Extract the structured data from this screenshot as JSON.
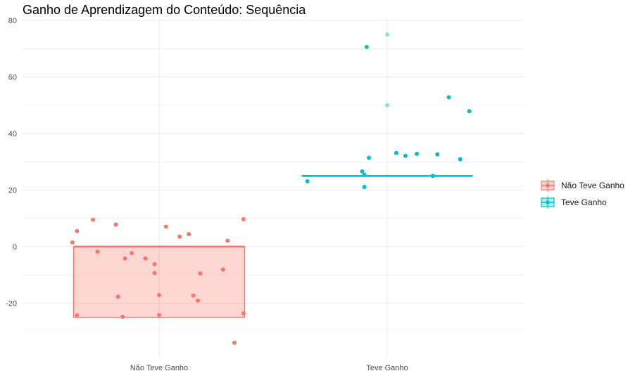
{
  "chart_data": {
    "type": "boxplot_with_jitter",
    "title": "Ganho de Aprendizagem do Conteúdo: Sequência",
    "xlabel": "",
    "ylabel": "",
    "categories": [
      "Não Teve Ganho",
      "Teve Ganho"
    ],
    "ylim": [
      -39,
      80.5
    ],
    "y_ticks": [
      -20,
      0,
      20,
      40,
      60,
      80
    ],
    "grid": true,
    "legend": {
      "position": "right",
      "entries": [
        "Não Teve Ganho",
        "Teve Ganho"
      ]
    },
    "colors": {
      "Não Teve Ganho": "#F8766D",
      "Teve Ganho": "#00BFC4",
      "box_fill_nao": "#F8766D",
      "grid": "#ebebeb"
    },
    "series": [
      {
        "name": "Não Teve Ganho",
        "box": {
          "q1": -25,
          "median": 0,
          "q3": 0,
          "whisker_low": -25,
          "whisker_high": 0
        },
        "outliers": [],
        "points": [
          {
            "x": -0.38,
            "y": 1.5
          },
          {
            "x": -0.36,
            "y": -24.3
          },
          {
            "x": -0.36,
            "y": 5.5
          },
          {
            "x": -0.29,
            "y": 9.5
          },
          {
            "x": -0.27,
            "y": -1.8
          },
          {
            "x": -0.19,
            "y": 7.8
          },
          {
            "x": -0.18,
            "y": -17.7
          },
          {
            "x": -0.16,
            "y": -24.8
          },
          {
            "x": -0.15,
            "y": -4.2
          },
          {
            "x": -0.12,
            "y": -2.3
          },
          {
            "x": -0.06,
            "y": -4.2
          },
          {
            "x": -0.02,
            "y": -6.2
          },
          {
            "x": -0.02,
            "y": -9.3
          },
          {
            "x": 0.0,
            "y": -24.2
          },
          {
            "x": 0.0,
            "y": -17.1
          },
          {
            "x": 0.03,
            "y": 7.1
          },
          {
            "x": 0.09,
            "y": 3.5
          },
          {
            "x": 0.13,
            "y": 4.4
          },
          {
            "x": 0.15,
            "y": -17.3
          },
          {
            "x": 0.17,
            "y": -19.1
          },
          {
            "x": 0.18,
            "y": -9.5
          },
          {
            "x": 0.28,
            "y": -8.1
          },
          {
            "x": 0.3,
            "y": 2.1
          },
          {
            "x": 0.33,
            "y": -34.0
          },
          {
            "x": 0.37,
            "y": -23.6
          },
          {
            "x": 0.37,
            "y": 9.7
          }
        ]
      },
      {
        "name": "Teve Ganho",
        "box": {
          "q1": 25,
          "median": 25,
          "q3": 25,
          "whisker_low": 25,
          "whisker_high": 25
        },
        "outliers": [
          75,
          50
        ],
        "points": [
          {
            "x": -0.35,
            "y": 23.1
          },
          {
            "x": -0.11,
            "y": 26.6
          },
          {
            "x": -0.1,
            "y": 25.4
          },
          {
            "x": -0.1,
            "y": 21.1
          },
          {
            "x": -0.09,
            "y": 70.6
          },
          {
            "x": -0.08,
            "y": 31.4
          },
          {
            "x": 0.04,
            "y": 33.1
          },
          {
            "x": 0.08,
            "y": 32.1
          },
          {
            "x": 0.13,
            "y": 32.8
          },
          {
            "x": 0.2,
            "y": 25.0
          },
          {
            "x": 0.22,
            "y": 32.6
          },
          {
            "x": 0.27,
            "y": 52.8
          },
          {
            "x": 0.32,
            "y": 30.9
          },
          {
            "x": 0.36,
            "y": 47.9
          }
        ]
      }
    ]
  }
}
